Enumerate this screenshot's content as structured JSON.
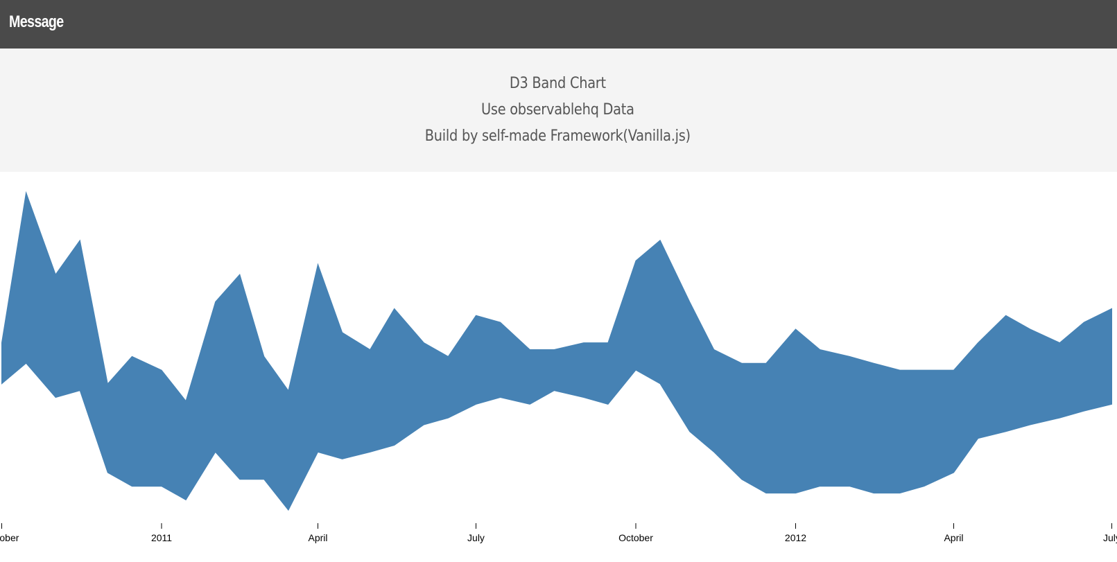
{
  "header": {
    "title": "Message"
  },
  "message": {
    "lines": [
      "D3 Band Chart",
      "Use observablehq Data",
      "Build by self-made Framework(Vanilla.js)"
    ]
  },
  "colors": {
    "header_bg": "#4a4a4a",
    "panel_bg": "#f4f4f4",
    "band": "#4682b4"
  },
  "chart_data": {
    "type": "area",
    "title": "D3 Band Chart",
    "xlabel": "",
    "ylabel": "",
    "grid": false,
    "x_axis_ticks": [
      "October",
      "2011",
      "April",
      "July",
      "October",
      "2012",
      "April",
      "July"
    ],
    "x_tick_dates": [
      "2010-10-01",
      "2011-01-01",
      "2011-04-01",
      "2011-07-01",
      "2011-10-01",
      "2012-01-01",
      "2012-04-01",
      "2012-07-01"
    ],
    "y_axis_visible": false,
    "xlim": [
      "2010-09-30",
      "2012-07-04"
    ],
    "ylim": [
      0,
      100
    ],
    "series": [
      {
        "dates": [
          "2010-10-01",
          "2010-10-15",
          "2010-11-01",
          "2010-11-15",
          "2010-12-01",
          "2010-12-15",
          "2011-01-01",
          "2011-01-15",
          "2011-02-01",
          "2011-02-15",
          "2011-03-01",
          "2011-03-15",
          "2011-04-01",
          "2011-04-15",
          "2011-05-01",
          "2011-05-15",
          "2011-06-01",
          "2011-06-15",
          "2011-07-01",
          "2011-07-15",
          "2011-08-01",
          "2011-08-15",
          "2011-09-01",
          "2011-09-15",
          "2011-10-01",
          "2011-10-15",
          "2011-11-01",
          "2011-11-15",
          "2011-12-01",
          "2011-12-15",
          "2012-01-01",
          "2012-01-15",
          "2012-02-01",
          "2012-02-15",
          "2012-03-01",
          "2012-03-15",
          "2012-04-01",
          "2012-04-15",
          "2012-05-01",
          "2012-05-15",
          "2012-06-01",
          "2012-06-15",
          "2012-07-01"
        ],
        "upper": [
          52,
          96,
          72,
          82,
          40,
          48,
          44,
          35,
          64,
          72,
          48,
          38,
          75,
          55,
          50,
          62,
          52,
          48,
          60,
          58,
          50,
          50,
          52,
          52,
          76,
          82,
          64,
          50,
          46,
          46,
          56,
          50,
          48,
          46,
          44,
          44,
          44,
          52,
          60,
          56,
          52,
          58,
          62
        ],
        "lower": [
          40,
          46,
          36,
          38,
          14,
          10,
          10,
          6,
          20,
          12,
          12,
          3,
          20,
          18,
          20,
          22,
          28,
          30,
          34,
          36,
          34,
          38,
          36,
          34,
          44,
          40,
          26,
          20,
          12,
          8,
          8,
          10,
          10,
          8,
          8,
          10,
          14,
          24,
          26,
          28,
          30,
          32,
          34
        ]
      }
    ]
  }
}
